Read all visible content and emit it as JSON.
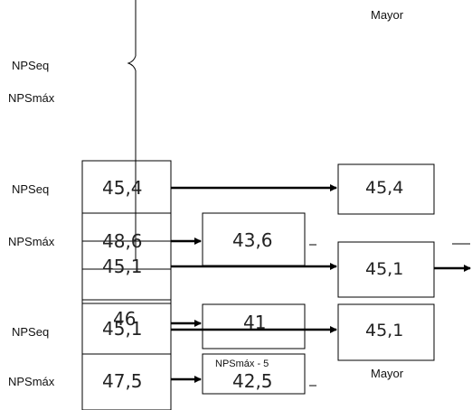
{
  "labels": {
    "mayor_top": "Mayor",
    "mayor_bottom": "Mayor",
    "npseq_1": "NPSeq",
    "npsmax_1": "NPSmáx",
    "npseq_2": "NPSeq",
    "npsmax_2": "NPSmáx",
    "npseq_3": "NPSeq",
    "npsmax_3": "NPSmáx",
    "npsmax_minus_5": "NPSmáx - 5"
  },
  "values": {
    "v1_left": "45,4",
    "v1_right": "45,4",
    "v2_left": "48,6",
    "v2_mid": "43,6",
    "v3_left": "45,1",
    "v3_right": "45,1",
    "v4_left_a": "46",
    "v4_left_b": "45,1",
    "v4_mid": "41",
    "v4_right": "45,1",
    "v5_left": "47,5",
    "v5_mid": "42,5"
  }
}
